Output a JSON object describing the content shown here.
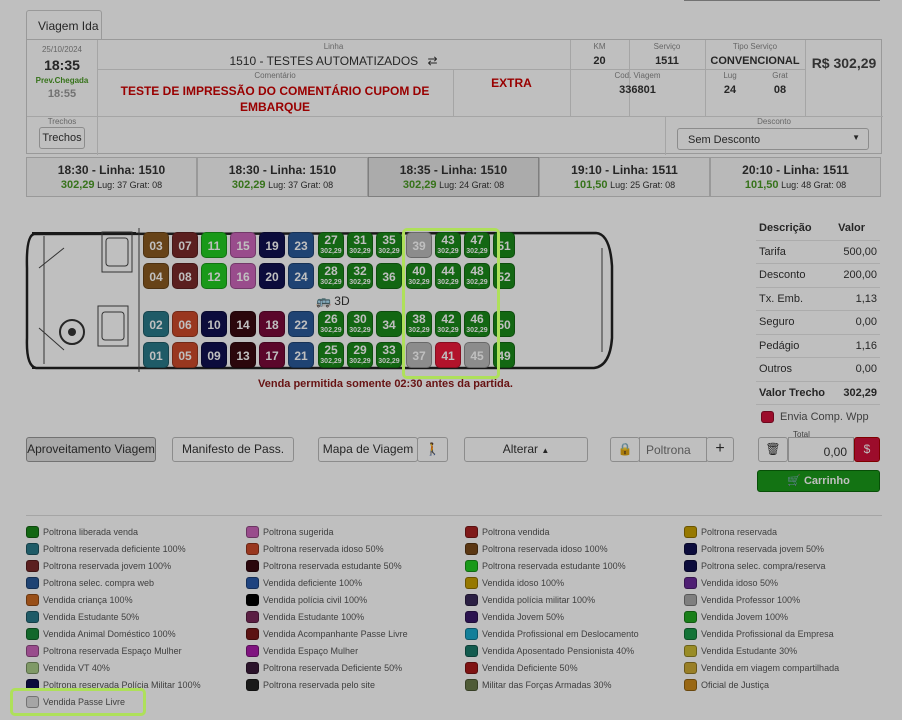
{
  "tab": "Viagem Ida",
  "info": {
    "date": "25/10/2024",
    "time": "18:35",
    "prev_label": "Prev.Chegada",
    "prev_time": "18:55",
    "linha_label": "Linha",
    "linha": "1510 - TESTES AUTOMATIZADOS",
    "km_label": "KM",
    "km": "20",
    "servico_label": "Serviço",
    "servico": "1511",
    "tipo_label": "Tipo Serviço",
    "tipo": "CONVENCIONAL",
    "price": "R$ 302,29",
    "comentario_label": "Comentário",
    "comentario": "TESTE DE IMPRESSÃO DO COMENTÁRIO CUPOM DE EMBARQUE",
    "extra": "EXTRA",
    "cod_label": "Cod. Viagem",
    "cod": "336801",
    "lug_label": "Lug",
    "lug": "24",
    "grat_label": "Grat",
    "grat": "08",
    "trechos_label": "Trechos",
    "trechos_btn": "Trechos",
    "desconto_label": "Desconto",
    "desconto": "Sem Desconto"
  },
  "trips": [
    {
      "title": "18:30 - Linha: 1510",
      "price": "302,29",
      "rest": "Lug: 37 Grat: 08"
    },
    {
      "title": "18:30 - Linha: 1510",
      "price": "302,29",
      "rest": "Lug: 37 Grat: 08"
    },
    {
      "title": "18:35 - Linha: 1510",
      "price": "302,29",
      "rest": "Lug: 24 Grat: 08"
    },
    {
      "title": "19:10 - Linha: 1511",
      "price": "101,50",
      "rest": "Lug: 25 Grat: 08"
    },
    {
      "title": "20:10 - Linha: 1511",
      "price": "101,50",
      "rest": "Lug: 48 Grat: 08"
    }
  ],
  "seat_price": "302,29",
  "seats": [
    {
      "n": "03",
      "c": "#8a5a20"
    },
    {
      "n": "07",
      "c": "#7a2a2a"
    },
    {
      "n": "11",
      "c": "#22cc22"
    },
    {
      "n": "15",
      "c": "#cc66bb"
    },
    {
      "n": "19",
      "c": "#101050"
    },
    {
      "n": "23",
      "c": "#2a5a9a"
    },
    {
      "n": "27",
      "c": "#1a8a1a",
      "p": true
    },
    {
      "n": "31",
      "c": "#1a8a1a",
      "p": true
    },
    {
      "n": "35",
      "c": "#1a8a1a",
      "p": true
    },
    {
      "n": "39",
      "c": "#bbbbbb"
    },
    {
      "n": "43",
      "c": "#1a8a1a",
      "p": true
    },
    {
      "n": "47",
      "c": "#1a8a1a",
      "p": true
    },
    {
      "n": "51",
      "c": "#1a8a1a"
    },
    {
      "n": "04",
      "c": "#8a5a20"
    },
    {
      "n": "08",
      "c": "#7a2a2a"
    },
    {
      "n": "12",
      "c": "#22cc22"
    },
    {
      "n": "16",
      "c": "#cc66bb"
    },
    {
      "n": "20",
      "c": "#101050"
    },
    {
      "n": "24",
      "c": "#2a5a9a"
    },
    {
      "n": "28",
      "c": "#1a8a1a",
      "p": true
    },
    {
      "n": "32",
      "c": "#1a8a1a",
      "p": true
    },
    {
      "n": "36",
      "c": "#1a8a1a"
    },
    {
      "n": "40",
      "c": "#1a8a1a",
      "p": true
    },
    {
      "n": "44",
      "c": "#1a8a1a",
      "p": true
    },
    {
      "n": "48",
      "c": "#1a8a1a",
      "p": true
    },
    {
      "n": "52",
      "c": "#1a8a1a"
    },
    {
      "n": "02",
      "c": "#2a7a8a"
    },
    {
      "n": "06",
      "c": "#cc4a2a"
    },
    {
      "n": "10",
      "c": "#101050"
    },
    {
      "n": "14",
      "c": "#3a0a10"
    },
    {
      "n": "18",
      "c": "#7a0a3a"
    },
    {
      "n": "22",
      "c": "#2a5a9a"
    },
    {
      "n": "26",
      "c": "#1a8a1a",
      "p": true
    },
    {
      "n": "30",
      "c": "#1a8a1a",
      "p": true
    },
    {
      "n": "34",
      "c": "#1a8a1a"
    },
    {
      "n": "38",
      "c": "#1a8a1a",
      "p": true
    },
    {
      "n": "42",
      "c": "#1a8a1a",
      "p": true
    },
    {
      "n": "46",
      "c": "#1a8a1a",
      "p": true
    },
    {
      "n": "50",
      "c": "#1a8a1a"
    },
    {
      "n": "01",
      "c": "#2a7a8a"
    },
    {
      "n": "05",
      "c": "#cc4a2a"
    },
    {
      "n": "09",
      "c": "#101050"
    },
    {
      "n": "13",
      "c": "#3a0a10"
    },
    {
      "n": "17",
      "c": "#7a0a3a"
    },
    {
      "n": "21",
      "c": "#2a5a9a"
    },
    {
      "n": "25",
      "c": "#1a8a1a",
      "p": true
    },
    {
      "n": "29",
      "c": "#1a8a1a",
      "p": true
    },
    {
      "n": "33",
      "c": "#1a8a1a",
      "p": true
    },
    {
      "n": "37",
      "c": "#bbbbbb"
    },
    {
      "n": "41",
      "c": "#ee1a3a"
    },
    {
      "n": "45",
      "c": "#bbbbbb"
    },
    {
      "n": "49",
      "c": "#1a8a1a"
    }
  ],
  "bus_3d": "3D",
  "notice": "Venda permitida somente 02:30 antes da partida.",
  "summary": {
    "h1": "Descrição",
    "h2": "Valor",
    "rows": [
      {
        "k": "Tarifa",
        "v": "500,00"
      },
      {
        "k": "Desconto",
        "v": "200,00"
      },
      {
        "k": "Tx. Emb.",
        "v": "1,13"
      },
      {
        "k": "Seguro",
        "v": "0,00"
      },
      {
        "k": "Pedágio",
        "v": "1,16"
      },
      {
        "k": "Outros",
        "v": "0,00"
      }
    ],
    "total_k": "Valor Trecho",
    "total_v": "302,29",
    "wpp": "Envia Comp. Wpp"
  },
  "buttons": {
    "aproveitamento": "Aproveitamento Viagem",
    "manifesto": "Manifesto de Pass.",
    "mapa": "Mapa de Viagem",
    "alterar": "Alterar",
    "poltrona_ph": "Poltrona",
    "total_label": "Total",
    "total": "0,00",
    "carrinho": "Carrinho"
  },
  "legend": [
    [
      "Poltrona liberada venda",
      "#1a8a1a"
    ],
    [
      "Poltrona sugerida",
      "#cc66bb"
    ],
    [
      "Poltrona vendida",
      "#aa2222"
    ],
    [
      "Poltrona reservada",
      "#c9a000"
    ],
    [
      "Poltrona reservada deficiente 100%",
      "#2a7a8a"
    ],
    [
      "Poltrona reservada idoso 50%",
      "#cc4a2a"
    ],
    [
      "Poltrona reservada idoso 100%",
      "#7a4a1a"
    ],
    [
      "Poltrona reservada jovem 50%",
      "#101050"
    ],
    [
      "Poltrona reservada jovem 100%",
      "#7a2a2a"
    ],
    [
      "Poltrona reservada estudante 50%",
      "#3a0a10"
    ],
    [
      "Poltrona reservada estudante 100%",
      "#22cc22"
    ],
    [
      "Poltrona selec. compra/reserva",
      "#101050"
    ],
    [
      "Poltrona selec. compra web",
      "#2a5a9a"
    ],
    [
      "Vendida deficiente 100%",
      "#2a5aaa"
    ],
    [
      "Vendida idoso 100%",
      "#c9a000"
    ],
    [
      "Vendida idoso 50%",
      "#6a2a9a"
    ],
    [
      "Vendida criança 100%",
      "#cc6a20"
    ],
    [
      "Vendida polícia civil 100%",
      "#000000"
    ],
    [
      "Vendida polícia militar 100%",
      "#3a2a5a"
    ],
    [
      "Vendida Professor 100%",
      "#aaaaaa"
    ],
    [
      "Vendida Estudante 50%",
      "#2a7a8a"
    ],
    [
      "Vendida Estudante 100%",
      "#7a2a5a"
    ],
    [
      "Vendida Jovem 50%",
      "#3a1a6a"
    ],
    [
      "Vendida Jovem 100%",
      "#22aa22"
    ],
    [
      "Vendida Animal Doméstico 100%",
      "#1a8a3a"
    ],
    [
      "Vendida Acompanhante Passe Livre",
      "#7a1a1a"
    ],
    [
      "Vendida Profissional em Deslocamento",
      "#1aaacc"
    ],
    [
      "Vendida Profissional da Empresa",
      "#1a9a4a"
    ],
    [
      "Poltrona reservada Espaço Mulher",
      "#cc66bb"
    ],
    [
      "Vendida Espaço Mulher",
      "#aa1aaa"
    ],
    [
      "Vendida Aposentado Pensionista 40%",
      "#1a7a6a"
    ],
    [
      "Vendida Estudante 30%",
      "#ccbb33"
    ],
    [
      "Vendida VT 40%",
      "#aacc88"
    ],
    [
      "Poltrona reservada Deficiente 50%",
      "#3a1a3a"
    ],
    [
      "Vendida Deficiente 50%",
      "#aa1a1a"
    ],
    [
      "Vendida em viagem compartilhada",
      "#ccaa33"
    ],
    [
      "Poltrona reservada Polícia Militar 100%",
      "#101050"
    ],
    [
      "Poltrona reservada pelo site",
      "#222222"
    ],
    [
      "Militar das Forças Armadas 30%",
      "#6a7a4a"
    ],
    [
      "Oficial de Justiça",
      "#cc8a1a"
    ],
    [
      "Vendida Passe Livre",
      "#dddddd"
    ]
  ]
}
